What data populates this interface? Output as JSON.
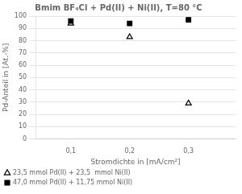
{
  "chart_data": {
    "type": "scatter",
    "title": "Bmim BF₄Cl + Pd(II) + Ni(II), T=80 °C",
    "x_label": "Stromdichte in [mA/cm²]",
    "y_label": "Pd-Anteil in [At.-%]",
    "series": [
      {
        "name": "23,5 mmol Pd(II) + 23,5  mmol Ni(II)",
        "x": [
          0.1,
          0.2,
          0.3
        ],
        "values": [
          94,
          83,
          29
        ],
        "color": "black",
        "marker": "triangle-open"
      },
      {
        "name": "47,0 mmol Pd(II) + 11,75 mmol Ni(II)",
        "x": [
          0.1,
          0.2,
          0.3
        ],
        "values": [
          96,
          94,
          97
        ],
        "color": "black",
        "marker": "square"
      }
    ],
    "xlim": [
      0.04,
      0.38
    ],
    "ylim": [
      0,
      100
    ],
    "xticks": [
      {
        "value": 0.1,
        "label": "0,1"
      },
      {
        "value": 0.2,
        "label": "0,2"
      },
      {
        "value": 0.3,
        "label": "0,3"
      }
    ],
    "yticks": [
      0,
      10,
      20,
      30,
      40,
      50,
      60,
      70,
      80,
      90,
      100
    ],
    "grid": "y",
    "legend": "lower left"
  }
}
